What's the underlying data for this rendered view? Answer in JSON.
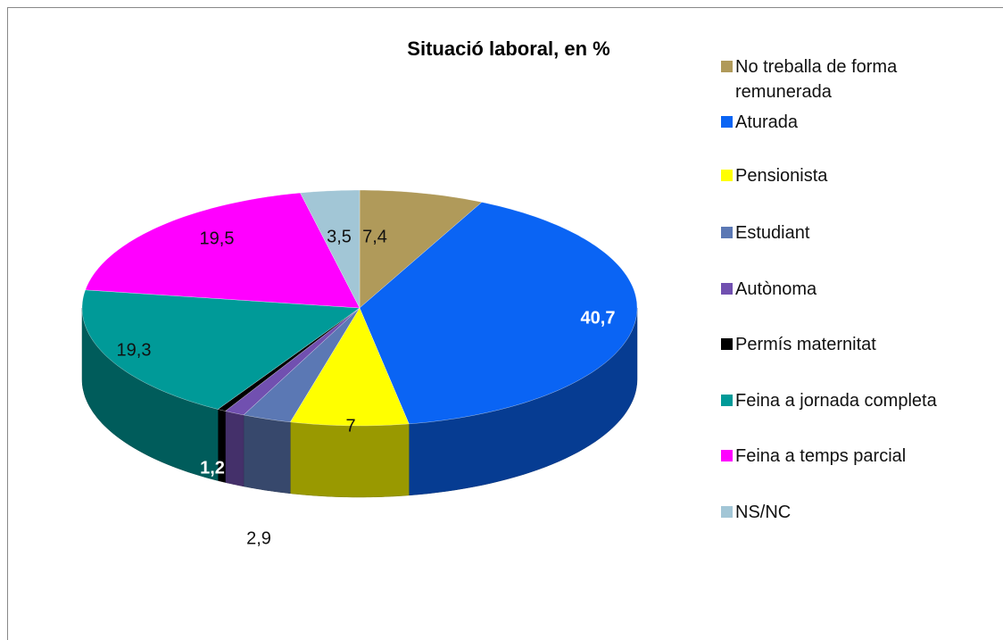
{
  "chart_data": {
    "type": "pie3d",
    "title": "Situació laboral, en %",
    "categories": [
      "No treballa de forma remunerada",
      "Aturada",
      "Pensionista",
      "Estudiant",
      "Autònoma",
      "Permís maternitat",
      "Feina a jornada completa",
      "Feina a temps parcial",
      "NS/NC"
    ],
    "values": [
      7.4,
      40.7,
      7,
      2.9,
      1.2,
      0.5,
      19.3,
      19.5,
      3.5
    ],
    "value_labels": [
      "7,4",
      "40,7",
      "7",
      "2,9",
      "1,2",
      null,
      "19,3",
      "19,5",
      "3,5"
    ],
    "colors": [
      "#b09a5a",
      "#0a64f4",
      "#ffff00",
      "#5b78b4",
      "#7150b0",
      "#000000",
      "#009a98",
      "#ff00ff",
      "#a2c6d6"
    ],
    "legend": "right"
  }
}
